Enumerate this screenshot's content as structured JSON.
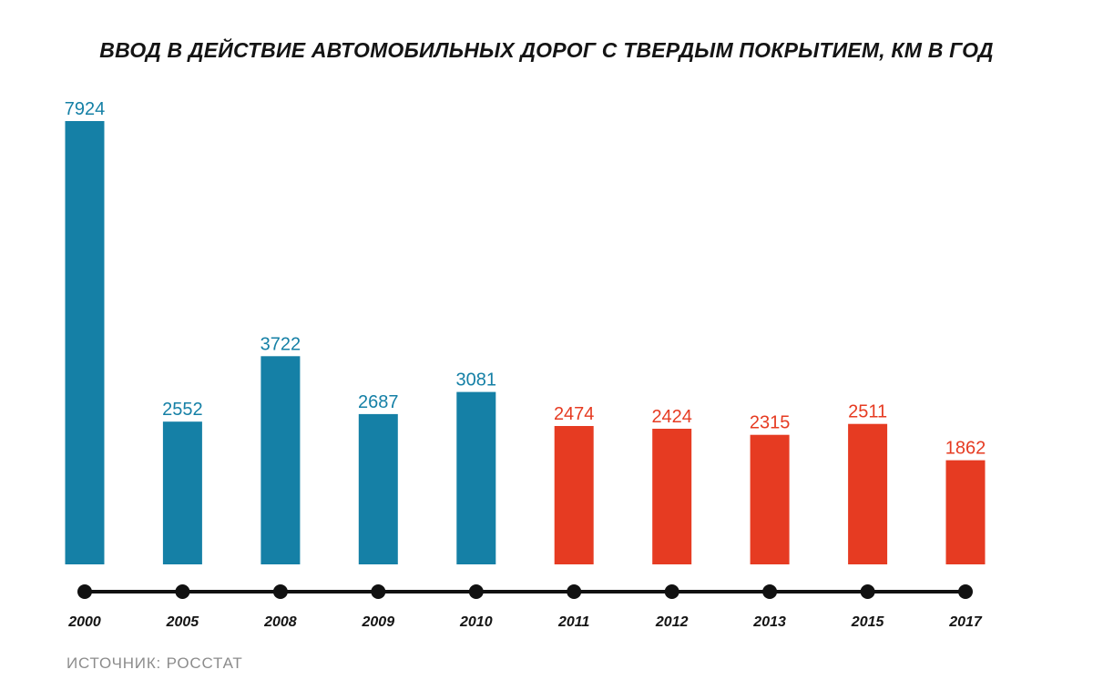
{
  "colors": {
    "blue": "#1580a6",
    "red": "#e63b22",
    "axis": "#111111",
    "text": "#141414",
    "source": "#8c8c8c"
  },
  "source": "ИСТОЧНИК: РОССТАТ",
  "chart_data": {
    "type": "bar",
    "title": "ВВОД В ДЕЙСТВИЕ АВТОМОБИЛЬНЫХ ДОРОГ С ТВЕРДЫМ ПОКРЫТИЕМ, КМ В ГОД",
    "categories": [
      "2000",
      "2005",
      "2008",
      "2009",
      "2010",
      "2011",
      "2012",
      "2013",
      "2015",
      "2017"
    ],
    "values": [
      7924,
      2552,
      3722,
      2687,
      3081,
      2474,
      2424,
      2315,
      2511,
      1862
    ],
    "bar_colors": [
      "blue",
      "blue",
      "blue",
      "blue",
      "blue",
      "red",
      "red",
      "red",
      "red",
      "red"
    ],
    "ylim": [
      0,
      7924
    ],
    "grid": false,
    "legend": "none",
    "data_labels": true
  }
}
